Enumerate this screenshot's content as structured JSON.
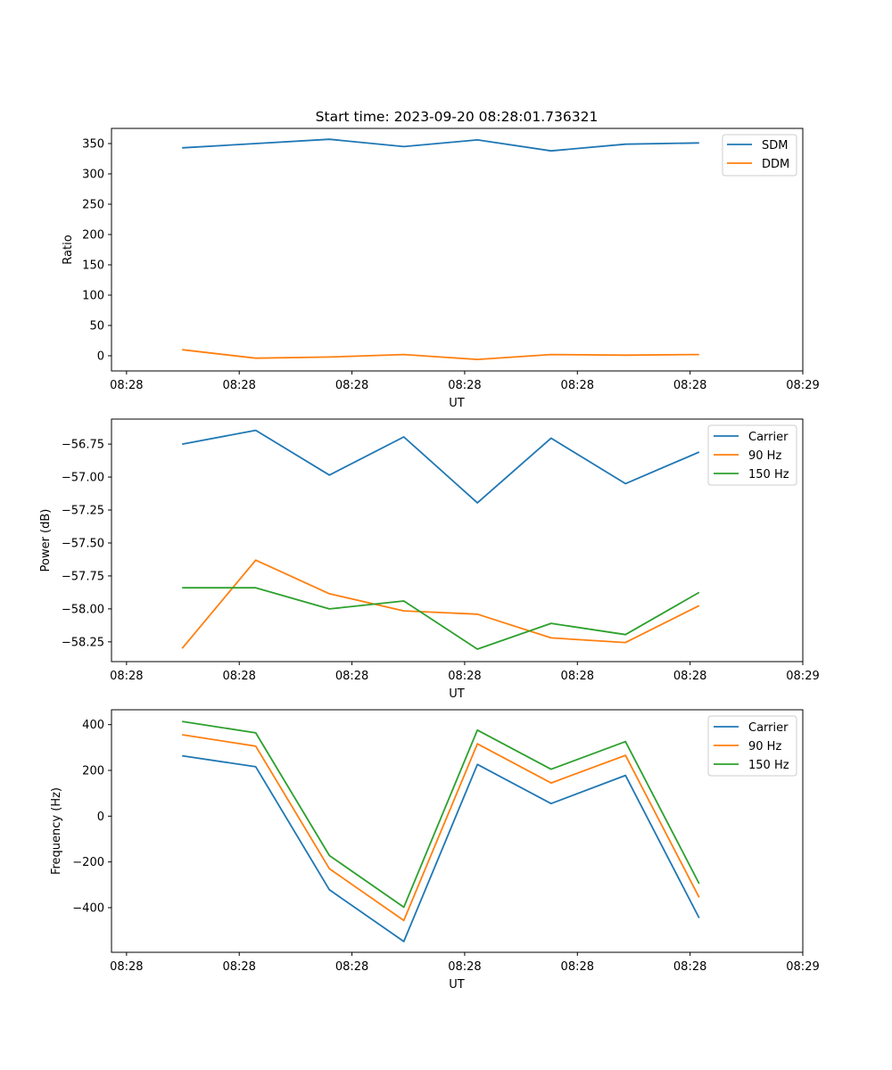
{
  "title": "Start time: 2023-09-20 08:28:01.736321",
  "colors": {
    "series1": "#1f77b4",
    "series2": "#ff7f0e",
    "series3": "#2ca02c",
    "axis": "#000000",
    "legend_border": "#cccccc"
  },
  "chart_data": [
    {
      "type": "line",
      "title": "Start time: 2023-09-20 08:28:01.736321",
      "xlabel": "UT",
      "ylabel": "Ratio",
      "xticks": [
        0,
        1.5,
        3,
        4.5,
        6,
        7.5,
        9
      ],
      "xtick_labels": [
        "08:28",
        "08:28",
        "08:28",
        "08:28",
        "08:28",
        "08:28",
        "08:29"
      ],
      "xlim": [
        -0.2,
        9.0
      ],
      "ylim": [
        -25,
        375
      ],
      "yticks": [
        0,
        50,
        100,
        150,
        200,
        250,
        300,
        350
      ],
      "ytick_labels": [
        "0",
        "50",
        "100",
        "150",
        "200",
        "250",
        "300",
        "350"
      ],
      "legend_position": "top-right",
      "x": [
        0.74,
        1.72,
        2.7,
        3.69,
        4.67,
        5.65,
        6.64,
        7.62
      ],
      "series": [
        {
          "name": "SDM",
          "color_key": "series1",
          "values": [
            343,
            350,
            357,
            345,
            356,
            338,
            349,
            351
          ]
        },
        {
          "name": "DDM",
          "color_key": "series2",
          "values": [
            10,
            -4,
            -2,
            2,
            -6,
            2,
            1,
            2
          ]
        }
      ]
    },
    {
      "type": "line",
      "title": "",
      "xlabel": "UT",
      "ylabel": "Power (dB)",
      "xticks": [
        0,
        1.5,
        3,
        4.5,
        6,
        7.5,
        9
      ],
      "xtick_labels": [
        "08:28",
        "08:28",
        "08:28",
        "08:28",
        "08:28",
        "08:28",
        "08:29"
      ],
      "xlim": [
        -0.2,
        9.0
      ],
      "ylim": [
        -58.4,
        -56.56
      ],
      "yticks": [
        -58.25,
        -58.0,
        -57.75,
        -57.5,
        -57.25,
        -57.0,
        -56.75
      ],
      "ytick_labels": [
        "−58.25",
        "−58.00",
        "−57.75",
        "−57.50",
        "−57.25",
        "−57.00",
        "−56.75"
      ],
      "legend_position": "top-right",
      "x": [
        0.74,
        1.72,
        2.7,
        3.69,
        4.67,
        5.65,
        6.64,
        7.62
      ],
      "series": [
        {
          "name": "Carrier",
          "color_key": "series1",
          "values": [
            -56.75,
            -56.645,
            -56.985,
            -56.695,
            -57.195,
            -56.705,
            -57.05,
            -56.81
          ]
        },
        {
          "name": "90 Hz",
          "color_key": "series2",
          "values": [
            -58.3,
            -57.63,
            -57.885,
            -58.015,
            -58.04,
            -58.22,
            -58.255,
            -57.975
          ]
        },
        {
          "name": "150 Hz",
          "color_key": "series3",
          "values": [
            -57.84,
            -57.84,
            -58.0,
            -57.94,
            -58.305,
            -58.11,
            -58.195,
            -57.875
          ]
        }
      ]
    },
    {
      "type": "line",
      "title": "",
      "xlabel": "UT",
      "ylabel": "Frequency (Hz)",
      "xticks": [
        0,
        1.5,
        3,
        4.5,
        6,
        7.5,
        9
      ],
      "xtick_labels": [
        "08:28",
        "08:28",
        "08:28",
        "08:28",
        "08:28",
        "08:28",
        "08:29"
      ],
      "xlim": [
        -0.2,
        9.0
      ],
      "ylim": [
        -595,
        465
      ],
      "yticks": [
        -400,
        -200,
        0,
        200,
        400
      ],
      "ytick_labels": [
        "−400",
        "−200",
        "0",
        "200",
        "400"
      ],
      "legend_position": "top-right",
      "x": [
        0.74,
        1.72,
        2.7,
        3.69,
        4.67,
        5.65,
        6.64,
        7.62
      ],
      "series": [
        {
          "name": "Carrier",
          "color_key": "series1",
          "values": [
            264,
            216,
            -322,
            -548,
            226,
            55,
            178,
            -445
          ]
        },
        {
          "name": "90 Hz",
          "color_key": "series2",
          "values": [
            356,
            306,
            -230,
            -456,
            316,
            145,
            266,
            -355
          ]
        },
        {
          "name": "150 Hz",
          "color_key": "series3",
          "values": [
            414,
            364,
            -172,
            -398,
            376,
            205,
            326,
            -295
          ]
        }
      ]
    }
  ]
}
